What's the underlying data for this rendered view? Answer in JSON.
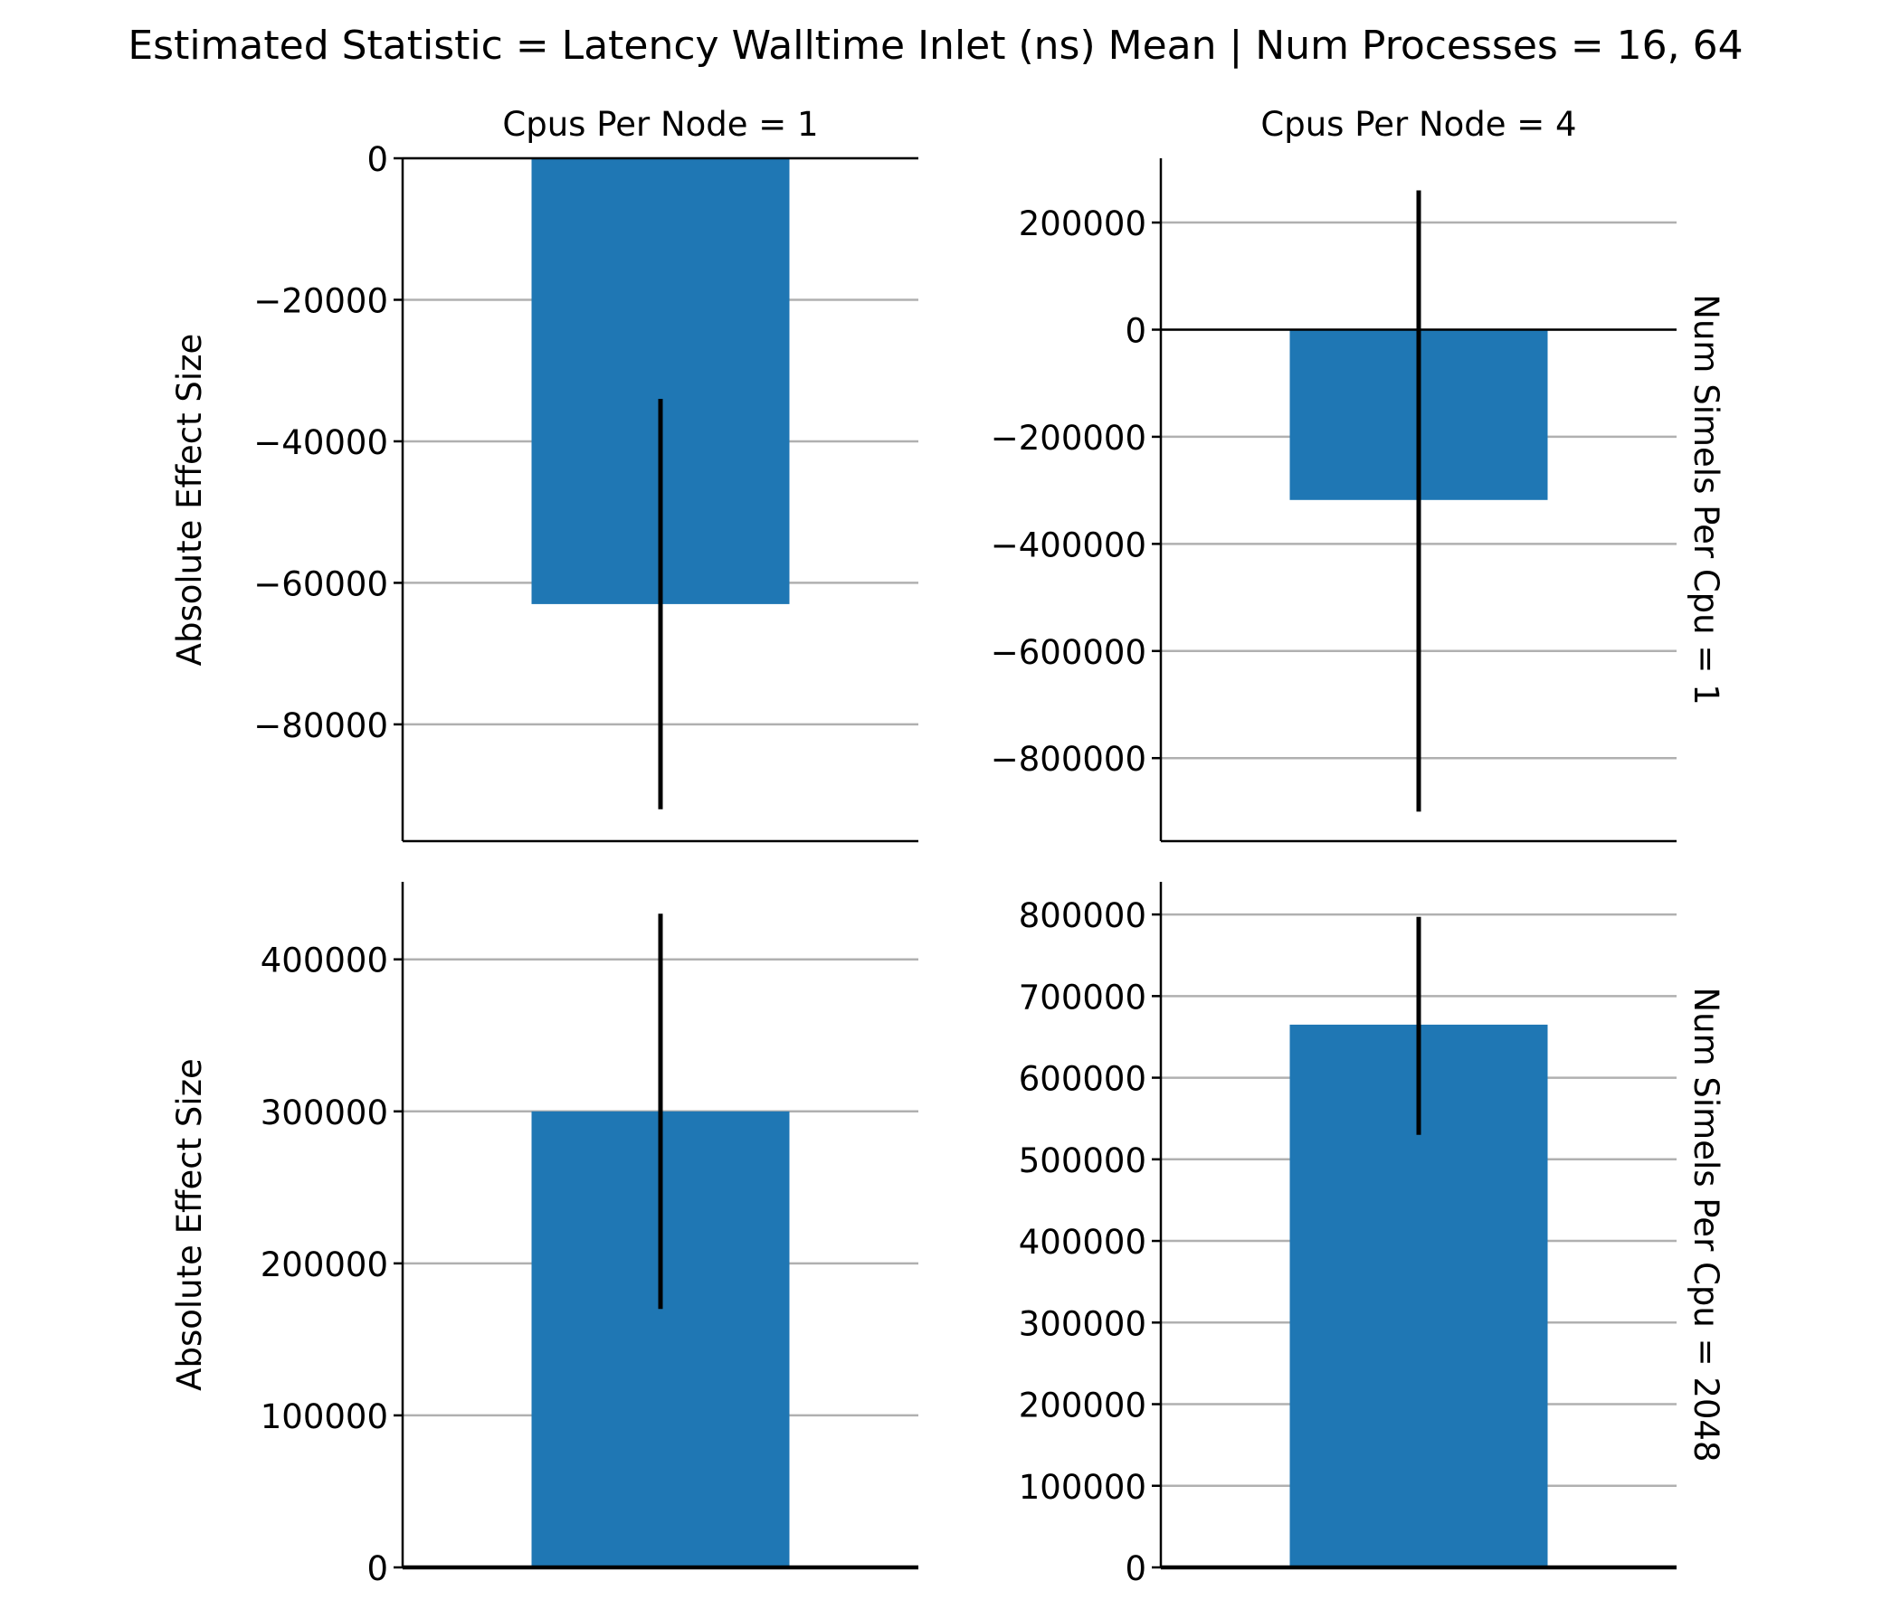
{
  "figure": {
    "title": "Estimated Statistic = Latency Walltime Inlet (ns) Mean | Num Processes = 16, 64",
    "bar_color": "#1f77b4",
    "errorbar_color": "#000000",
    "grid_color": "#b0b0b0"
  },
  "chart_data": [
    {
      "type": "bar",
      "column_title": "Cpus Per Node = 1",
      "row_label": "",
      "ylabel": "Absolute Effect Size",
      "ylim": [
        -96500,
        0
      ],
      "yticks": [
        0,
        -20000,
        -40000,
        -60000,
        -80000
      ],
      "ytick_labels": [
        "0",
        "−20000",
        "−40000",
        "−60000",
        "−80000"
      ],
      "grid": "horizontal",
      "series": [
        {
          "value": -63000,
          "ci_low": -92000,
          "ci_high": -34000
        }
      ]
    },
    {
      "type": "bar",
      "column_title": "Cpus Per Node = 4",
      "row_label": "Num Simels Per Cpu = 1",
      "ylabel": "",
      "ylim": [
        -955000,
        320000
      ],
      "yticks": [
        200000,
        0,
        -200000,
        -400000,
        -600000,
        -800000
      ],
      "ytick_labels": [
        "200000",
        "0",
        "−200000",
        "−400000",
        "−600000",
        "−800000"
      ],
      "grid": "horizontal",
      "series": [
        {
          "value": -318000,
          "ci_low": -900000,
          "ci_high": 260000
        }
      ]
    },
    {
      "type": "bar",
      "column_title": "",
      "row_label": "",
      "ylabel": "Absolute Effect Size",
      "ylim": [
        0,
        451000
      ],
      "yticks": [
        0,
        100000,
        200000,
        300000,
        400000
      ],
      "ytick_labels": [
        "0",
        "100000",
        "200000",
        "300000",
        "400000"
      ],
      "grid": "horizontal",
      "series": [
        {
          "value": 300000,
          "ci_low": 170000,
          "ci_high": 430000
        }
      ]
    },
    {
      "type": "bar",
      "column_title": "",
      "row_label": "Num Simels Per Cpu = 2048",
      "ylabel": "",
      "ylim": [
        0,
        840000
      ],
      "yticks": [
        0,
        100000,
        200000,
        300000,
        400000,
        500000,
        600000,
        700000,
        800000
      ],
      "ytick_labels": [
        "0",
        "100000",
        "200000",
        "300000",
        "400000",
        "500000",
        "600000",
        "700000",
        "800000"
      ],
      "grid": "horizontal",
      "series": [
        {
          "value": 665000,
          "ci_low": 530000,
          "ci_high": 797000
        }
      ]
    }
  ]
}
